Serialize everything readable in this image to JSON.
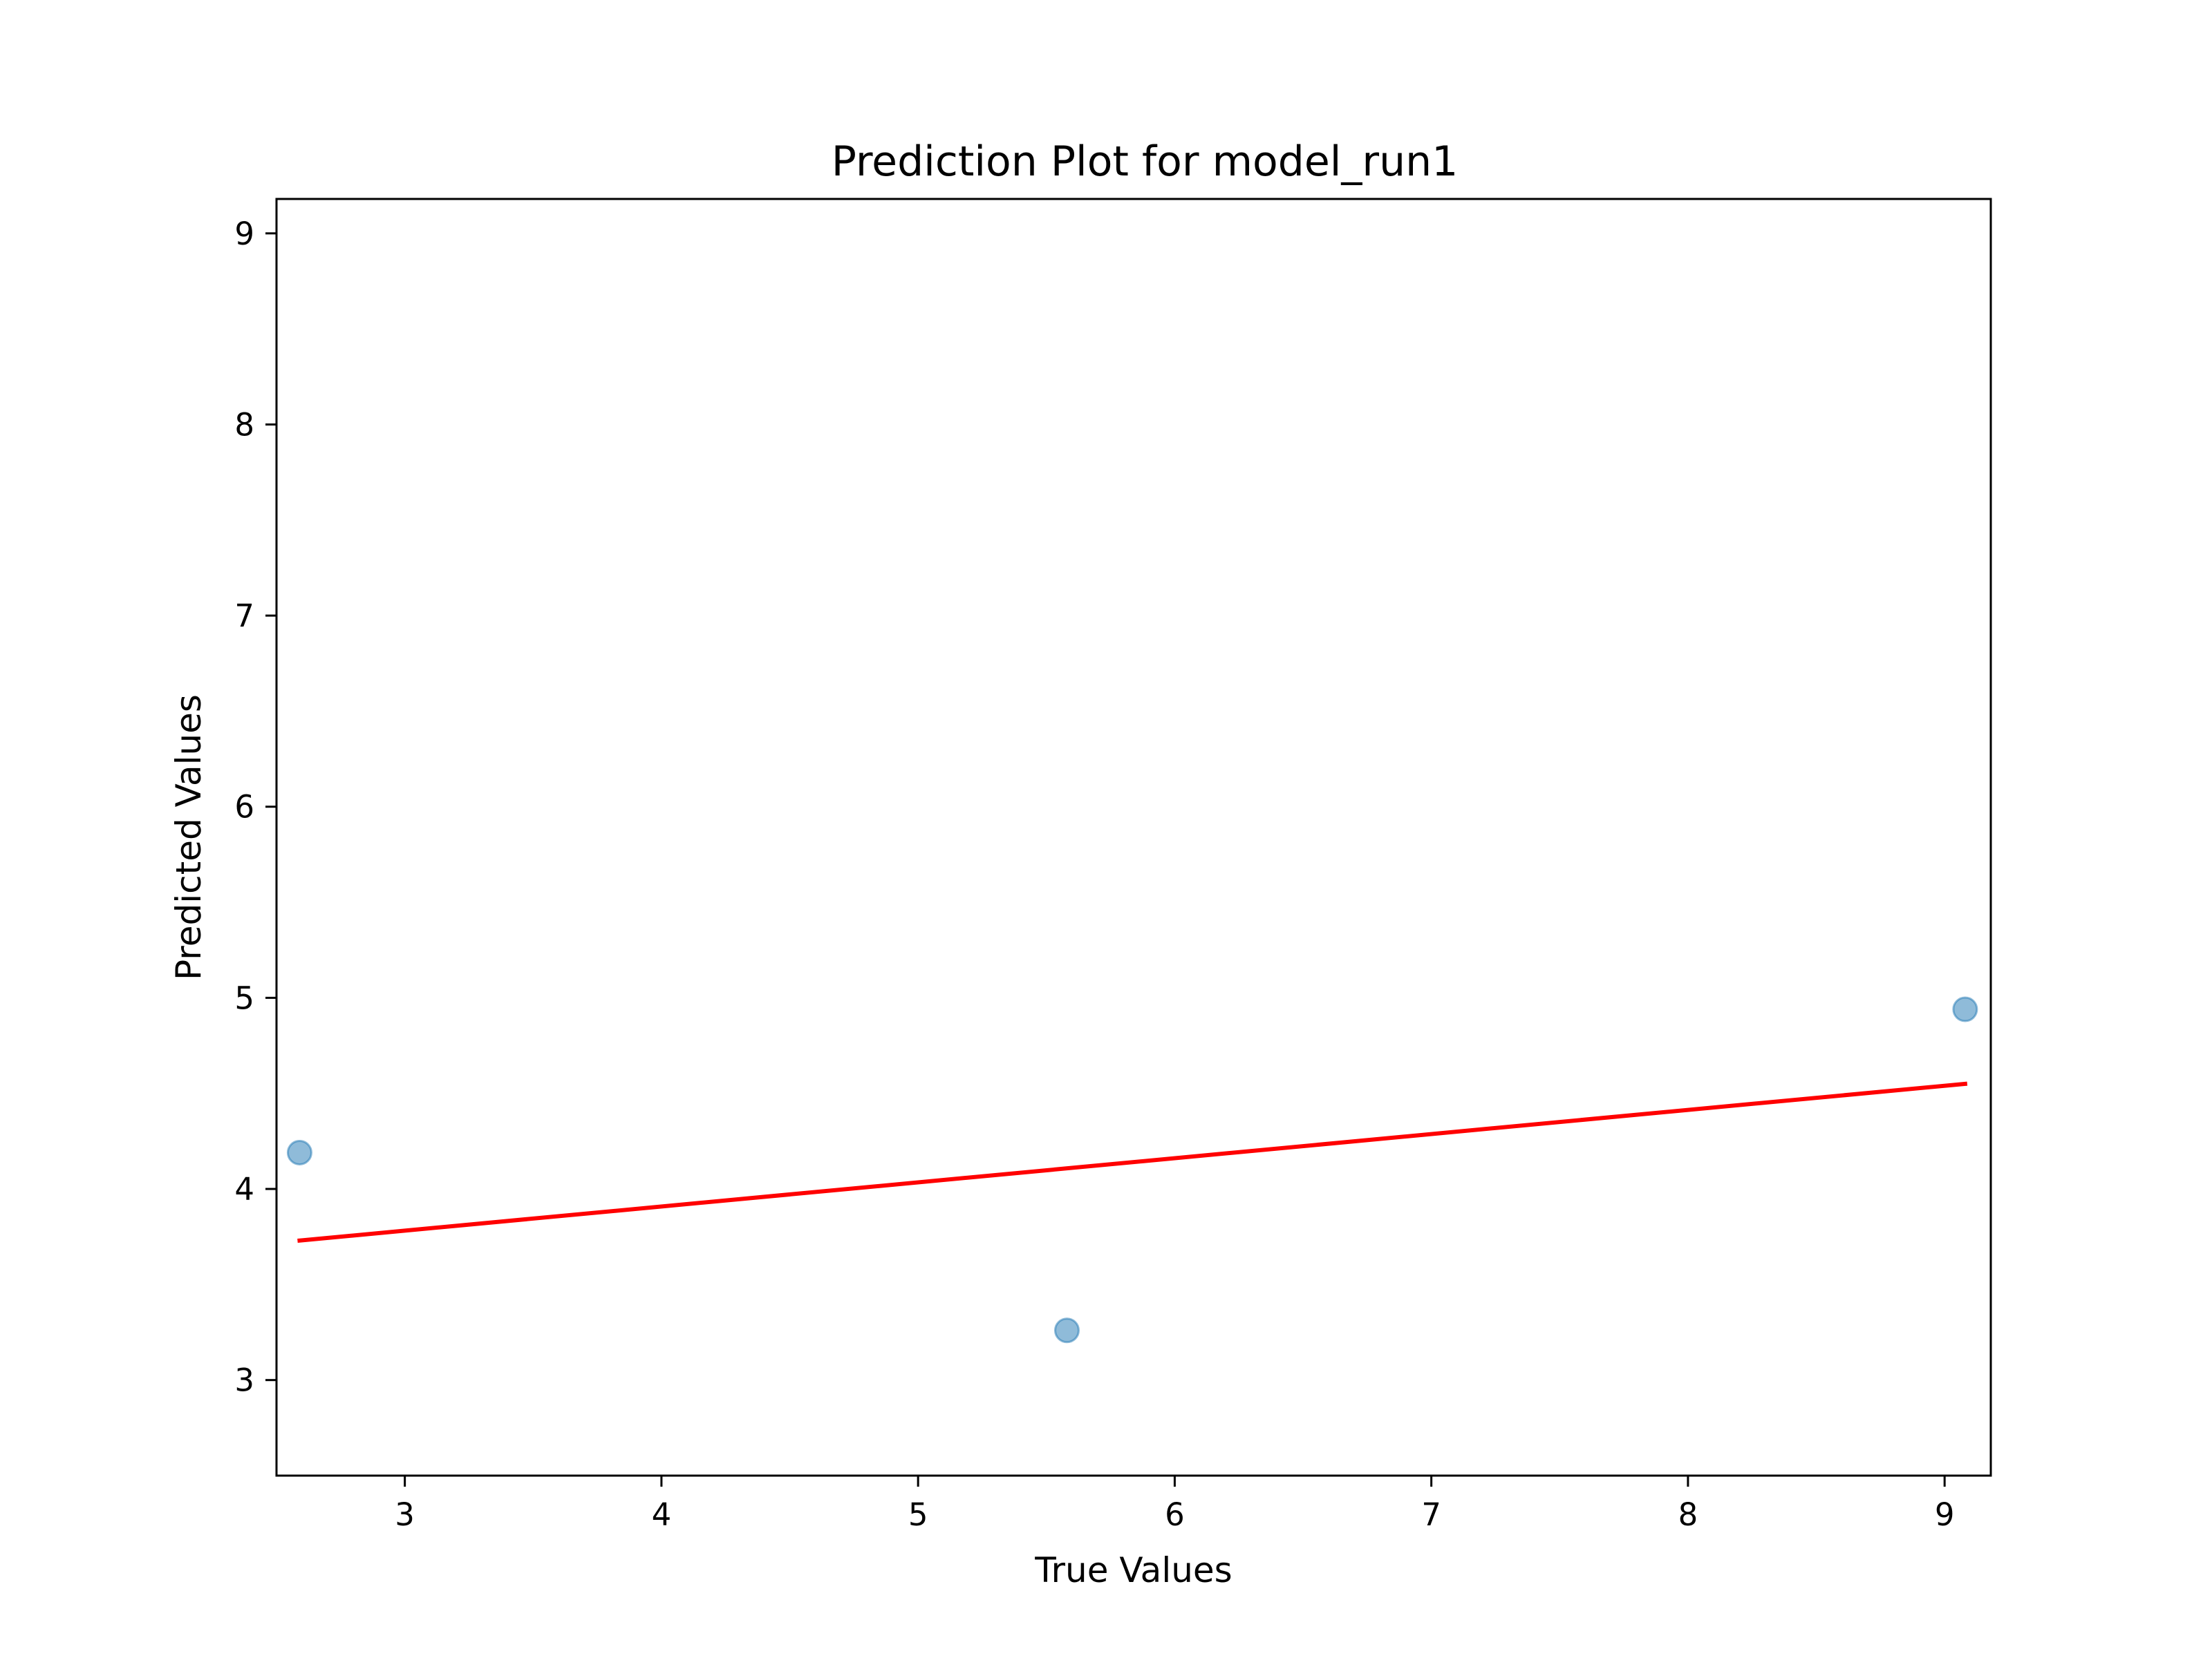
{
  "chart_data": {
    "type": "scatter",
    "title": "Prediction Plot for model_run1",
    "xlabel": "True Values",
    "ylabel": "Predicted Values",
    "xlim": [
      2.5,
      9.18
    ],
    "ylim": [
      2.5,
      9.18
    ],
    "xticks": [
      3,
      4,
      5,
      6,
      7,
      8,
      9
    ],
    "yticks": [
      3,
      4,
      5,
      6,
      7,
      8,
      9
    ],
    "grid": false,
    "series": [
      {
        "kind": "scatter",
        "x": [
          2.59,
          5.58,
          9.08
        ],
        "y": [
          4.19,
          3.26,
          4.94
        ],
        "color": "#1f77b4",
        "alpha": 0.5
      },
      {
        "kind": "line",
        "x": [
          2.59,
          9.08
        ],
        "y": [
          3.73,
          4.55
        ],
        "color": "#ff0000"
      }
    ]
  }
}
